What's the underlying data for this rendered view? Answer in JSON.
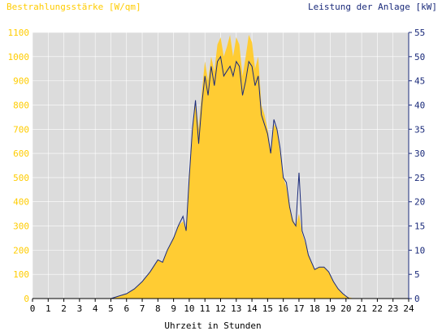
{
  "colors": {
    "background": "#ffffff",
    "plot_bg": "#dcdcdc",
    "irradiance_fill": "#ffcc33",
    "irradiance_label": "#ffcc00",
    "power_line": "#1a2a7a",
    "power_label": "#1a2a7a",
    "x_label": "#000000"
  },
  "chart_data": {
    "type": "area",
    "title_left": "Bestrahlungsstärke [W/qm]",
    "title_right": "Leistung der Anlage [kW]",
    "xlabel": "Uhrzeit in Stunden",
    "xlim": [
      0,
      24
    ],
    "ylim_left": [
      0,
      1100
    ],
    "ylim_right": [
      0,
      55
    ],
    "x_ticks": [
      0,
      1,
      2,
      3,
      4,
      5,
      6,
      7,
      8,
      9,
      10,
      11,
      12,
      13,
      14,
      15,
      16,
      17,
      18,
      19,
      20,
      21,
      22,
      23,
      24
    ],
    "y_left_ticks": [
      0,
      100,
      200,
      300,
      400,
      500,
      600,
      700,
      800,
      900,
      1000,
      1100
    ],
    "y_right_ticks": [
      0,
      5,
      10,
      15,
      20,
      25,
      30,
      35,
      40,
      45,
      50,
      55
    ],
    "series": [
      {
        "name": "Bestrahlungsstärke [W/qm]",
        "axis": "left",
        "style": "area",
        "x": [
          0,
          5.0,
          5.5,
          6.0,
          6.5,
          7.0,
          7.5,
          8.0,
          8.3,
          8.6,
          9.0,
          9.3,
          9.6,
          9.8,
          10.0,
          10.2,
          10.4,
          10.6,
          10.8,
          11.0,
          11.2,
          11.4,
          11.6,
          11.8,
          12.0,
          12.2,
          12.4,
          12.6,
          12.8,
          13.0,
          13.2,
          13.4,
          13.6,
          13.8,
          14.0,
          14.2,
          14.4,
          14.6,
          14.8,
          15.0,
          15.2,
          15.4,
          15.6,
          15.8,
          16.0,
          16.2,
          16.4,
          16.6,
          16.8,
          17.0,
          17.2,
          17.4,
          17.6,
          17.8,
          18.0,
          18.3,
          18.6,
          18.9,
          19.2,
          19.5,
          19.8,
          20.0,
          20.2,
          20.5,
          21.0,
          24
        ],
        "y": [
          0,
          0,
          10,
          20,
          40,
          70,
          110,
          160,
          150,
          200,
          250,
          300,
          320,
          280,
          500,
          700,
          820,
          700,
          850,
          980,
          900,
          1000,
          940,
          1050,
          1080,
          1000,
          1040,
          1090,
          1000,
          1080,
          1050,
          920,
          1000,
          1090,
          1060,
          950,
          1000,
          800,
          760,
          700,
          600,
          720,
          700,
          600,
          500,
          460,
          380,
          330,
          300,
          350,
          270,
          230,
          180,
          150,
          120,
          130,
          130,
          110,
          70,
          40,
          20,
          10,
          5,
          0,
          0,
          0
        ]
      },
      {
        "name": "Leistung der Anlage [kW]",
        "axis": "right",
        "style": "line",
        "x": [
          0,
          5.0,
          5.5,
          6.0,
          6.5,
          7.0,
          7.5,
          8.0,
          8.3,
          8.6,
          9.0,
          9.3,
          9.6,
          9.8,
          10.0,
          10.2,
          10.4,
          10.6,
          10.8,
          11.0,
          11.2,
          11.4,
          11.6,
          11.8,
          12.0,
          12.2,
          12.4,
          12.6,
          12.8,
          13.0,
          13.2,
          13.4,
          13.6,
          13.8,
          14.0,
          14.2,
          14.4,
          14.6,
          14.8,
          15.0,
          15.2,
          15.4,
          15.6,
          15.8,
          16.0,
          16.2,
          16.4,
          16.6,
          16.8,
          17.0,
          17.2,
          17.4,
          17.6,
          17.8,
          18.0,
          18.3,
          18.6,
          18.9,
          19.2,
          19.5,
          19.8,
          20.0,
          20.2,
          20.5,
          21.0,
          24
        ],
        "y": [
          0,
          0,
          0.5,
          1,
          2,
          3.5,
          5.5,
          8,
          7.5,
          10,
          12.5,
          15,
          17,
          14,
          25,
          35,
          41,
          32,
          40,
          46,
          42,
          48,
          44,
          49,
          50,
          46,
          47,
          48,
          46,
          49,
          48,
          42,
          45,
          49,
          48,
          44,
          46,
          38,
          36,
          34,
          30,
          37,
          35,
          31,
          25,
          24,
          19,
          16,
          15,
          26,
          14,
          12,
          9,
          7.5,
          6,
          6.5,
          6.5,
          5.5,
          3.5,
          2,
          1,
          0.5,
          0,
          0,
          0,
          0
        ]
      }
    ]
  }
}
